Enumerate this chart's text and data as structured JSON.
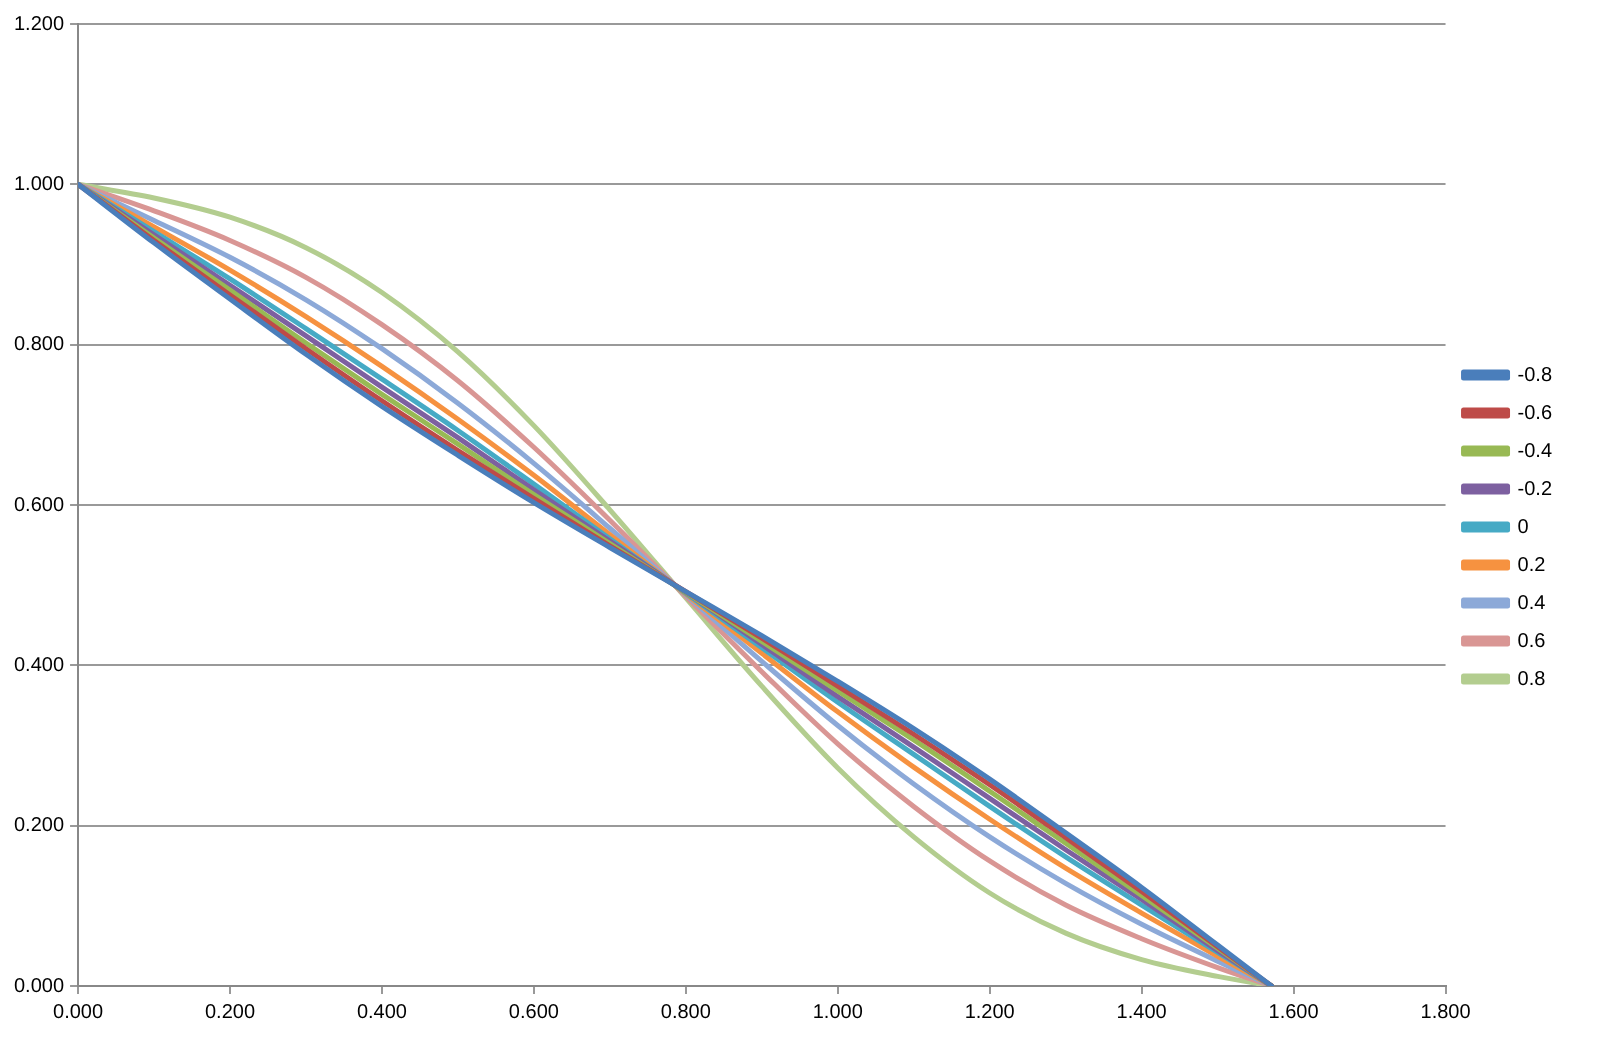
{
  "chart_data": {
    "type": "line",
    "x": [
      0,
      0.1,
      0.2,
      0.3,
      0.4,
      0.5,
      0.6,
      0.7,
      0.8,
      0.9,
      1.0,
      1.1,
      1.2,
      1.3,
      1.4,
      1.5,
      1.571
    ],
    "series": [
      {
        "name": "-0.8",
        "color": "#4a7ebb",
        "values": [
          1,
          0.927,
          0.857,
          0.788,
          0.723,
          0.662,
          0.603,
          0.547,
          0.492,
          0.437,
          0.38,
          0.321,
          0.258,
          0.191,
          0.123,
          0.051,
          0
        ]
      },
      {
        "name": "-0.6",
        "color": "#be4b48",
        "values": [
          1,
          0.93,
          0.862,
          0.795,
          0.73,
          0.668,
          0.608,
          0.549,
          0.492,
          0.434,
          0.374,
          0.314,
          0.251,
          0.185,
          0.118,
          0.049,
          0
        ]
      },
      {
        "name": "-0.4",
        "color": "#98b954",
        "values": [
          1,
          0.933,
          0.868,
          0.802,
          0.738,
          0.676,
          0.613,
          0.552,
          0.491,
          0.43,
          0.368,
          0.307,
          0.243,
          0.178,
          0.113,
          0.047,
          0
        ]
      },
      {
        "name": "-0.2",
        "color": "#7d60a0",
        "values": [
          1,
          0.937,
          0.874,
          0.811,
          0.747,
          0.684,
          0.619,
          0.555,
          0.491,
          0.426,
          0.361,
          0.298,
          0.234,
          0.17,
          0.108,
          0.044,
          0
        ]
      },
      {
        "name": "0",
        "color": "#46aac5",
        "values": [
          1,
          0.941,
          0.882,
          0.82,
          0.757,
          0.693,
          0.626,
          0.558,
          0.49,
          0.422,
          0.354,
          0.289,
          0.224,
          0.161,
          0.101,
          0.042,
          0
        ]
      },
      {
        "name": "0.2",
        "color": "#f69240",
        "values": [
          1,
          0.947,
          0.893,
          0.835,
          0.773,
          0.707,
          0.637,
          0.563,
          0.489,
          0.415,
          0.342,
          0.273,
          0.208,
          0.147,
          0.091,
          0.037,
          0
        ]
      },
      {
        "name": "0.4",
        "color": "#8ca9d8",
        "values": [
          1,
          0.955,
          0.909,
          0.856,
          0.795,
          0.727,
          0.652,
          0.571,
          0.488,
          0.405,
          0.325,
          0.252,
          0.186,
          0.128,
          0.077,
          0.031,
          0
        ]
      },
      {
        "name": "0.6",
        "color": "#d99694",
        "values": [
          1,
          0.967,
          0.93,
          0.884,
          0.825,
          0.755,
          0.672,
          0.581,
          0.486,
          0.392,
          0.302,
          0.224,
          0.156,
          0.101,
          0.059,
          0.023,
          0
        ]
      },
      {
        "name": "0.8",
        "color": "#b3cd8f",
        "values": [
          1,
          0.983,
          0.959,
          0.921,
          0.865,
          0.791,
          0.699,
          0.594,
          0.484,
          0.374,
          0.272,
          0.186,
          0.116,
          0.066,
          0.033,
          0.012,
          0
        ]
      }
    ],
    "xlim": [
      0,
      1.8
    ],
    "xticks": [
      {
        "value": 0,
        "label": "0.000"
      },
      {
        "value": 0.2,
        "label": "0.200"
      },
      {
        "value": 0.4,
        "label": "0.400"
      },
      {
        "value": 0.6,
        "label": "0.600"
      },
      {
        "value": 0.8,
        "label": "0.800"
      },
      {
        "value": 1.0,
        "label": "1.000"
      },
      {
        "value": 1.2,
        "label": "1.200"
      },
      {
        "value": 1.4,
        "label": "1.400"
      },
      {
        "value": 1.6,
        "label": "1.600"
      },
      {
        "value": 1.8,
        "label": "1.800"
      }
    ],
    "ylim": [
      0,
      1.2
    ],
    "yticks": [
      {
        "value": 0,
        "label": "0.000"
      },
      {
        "value": 0.2,
        "label": "0.200"
      },
      {
        "value": 0.4,
        "label": "0.400"
      },
      {
        "value": 0.6,
        "label": "0.600"
      },
      {
        "value": 0.8,
        "label": "0.800"
      },
      {
        "value": 1.0,
        "label": "1.000"
      },
      {
        "value": 1.2,
        "label": "1.200"
      }
    ],
    "grid": "y",
    "legend": "right",
    "marker": "none",
    "line_style": "solid"
  }
}
